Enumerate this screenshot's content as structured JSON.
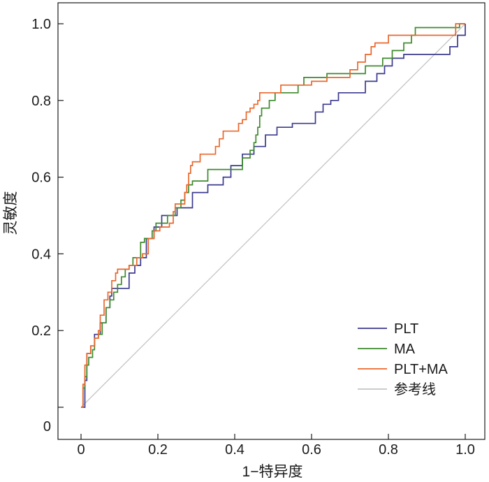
{
  "chart_data": {
    "type": "line",
    "title": "",
    "xlabel": "1−特异度",
    "ylabel": "灵敏度",
    "xlim": [
      0,
      1.0
    ],
    "ylim": [
      0,
      1.0
    ],
    "x_ticks": [
      "0",
      "0.2",
      "0.4",
      "0.6",
      "0.8",
      "1.0"
    ],
    "y_ticks": [
      "0",
      "0.2",
      "0.4",
      "0.6",
      "0.8",
      "1.0"
    ],
    "grid": false,
    "legend_position": "bottom-right",
    "series": [
      {
        "name": "PLT",
        "color": "#3b3a8e",
        "points": [
          [
            0,
            0
          ],
          [
            0.01,
            0.07
          ],
          [
            0.015,
            0.14
          ],
          [
            0.025,
            0.16
          ],
          [
            0.035,
            0.19
          ],
          [
            0.05,
            0.22
          ],
          [
            0.065,
            0.26
          ],
          [
            0.075,
            0.29
          ],
          [
            0.08,
            0.31
          ],
          [
            0.095,
            0.31
          ],
          [
            0.11,
            0.31
          ],
          [
            0.125,
            0.35
          ],
          [
            0.14,
            0.37
          ],
          [
            0.155,
            0.39
          ],
          [
            0.17,
            0.44
          ],
          [
            0.19,
            0.47
          ],
          [
            0.21,
            0.5
          ],
          [
            0.23,
            0.5
          ],
          [
            0.25,
            0.52
          ],
          [
            0.29,
            0.56
          ],
          [
            0.33,
            0.58
          ],
          [
            0.37,
            0.6
          ],
          [
            0.39,
            0.63
          ],
          [
            0.42,
            0.66
          ],
          [
            0.45,
            0.68
          ],
          [
            0.48,
            0.71
          ],
          [
            0.51,
            0.73
          ],
          [
            0.55,
            0.74
          ],
          [
            0.58,
            0.74
          ],
          [
            0.61,
            0.77
          ],
          [
            0.63,
            0.79
          ],
          [
            0.65,
            0.8
          ],
          [
            0.67,
            0.82
          ],
          [
            0.72,
            0.82
          ],
          [
            0.74,
            0.85
          ],
          [
            0.77,
            0.87
          ],
          [
            0.79,
            0.89
          ],
          [
            0.81,
            0.91
          ],
          [
            0.84,
            0.92
          ],
          [
            0.86,
            0.92
          ],
          [
            0.88,
            0.92
          ],
          [
            0.91,
            0.92
          ],
          [
            0.93,
            0.92
          ],
          [
            0.96,
            0.94
          ],
          [
            0.98,
            0.97
          ],
          [
            1.0,
            1.0
          ]
        ]
      },
      {
        "name": "MA",
        "color": "#3d8a2c",
        "points": [
          [
            0,
            0
          ],
          [
            0.005,
            0.05
          ],
          [
            0.01,
            0.08
          ],
          [
            0.015,
            0.11
          ],
          [
            0.02,
            0.13
          ],
          [
            0.03,
            0.15
          ],
          [
            0.035,
            0.18
          ],
          [
            0.045,
            0.19
          ],
          [
            0.055,
            0.22
          ],
          [
            0.065,
            0.26
          ],
          [
            0.075,
            0.28
          ],
          [
            0.085,
            0.3
          ],
          [
            0.095,
            0.32
          ],
          [
            0.105,
            0.34
          ],
          [
            0.115,
            0.36
          ],
          [
            0.125,
            0.37
          ],
          [
            0.135,
            0.39
          ],
          [
            0.145,
            0.39
          ],
          [
            0.155,
            0.43
          ],
          [
            0.165,
            0.44
          ],
          [
            0.185,
            0.46
          ],
          [
            0.195,
            0.48
          ],
          [
            0.21,
            0.48
          ],
          [
            0.225,
            0.5
          ],
          [
            0.235,
            0.5
          ],
          [
            0.245,
            0.52
          ],
          [
            0.26,
            0.54
          ],
          [
            0.27,
            0.56
          ],
          [
            0.28,
            0.58
          ],
          [
            0.29,
            0.59
          ],
          [
            0.31,
            0.59
          ],
          [
            0.33,
            0.62
          ],
          [
            0.365,
            0.62
          ],
          [
            0.385,
            0.62
          ],
          [
            0.41,
            0.62
          ],
          [
            0.42,
            0.65
          ],
          [
            0.44,
            0.67
          ],
          [
            0.45,
            0.69
          ],
          [
            0.455,
            0.71
          ],
          [
            0.46,
            0.73
          ],
          [
            0.465,
            0.76
          ],
          [
            0.47,
            0.78
          ],
          [
            0.49,
            0.8
          ],
          [
            0.505,
            0.82
          ],
          [
            0.54,
            0.82
          ],
          [
            0.565,
            0.84
          ],
          [
            0.58,
            0.86
          ],
          [
            0.61,
            0.86
          ],
          [
            0.64,
            0.87
          ],
          [
            0.665,
            0.87
          ],
          [
            0.72,
            0.87
          ],
          [
            0.74,
            0.89
          ],
          [
            0.76,
            0.89
          ],
          [
            0.785,
            0.91
          ],
          [
            0.81,
            0.93
          ],
          [
            0.825,
            0.93
          ],
          [
            0.84,
            0.95
          ],
          [
            0.86,
            0.97
          ],
          [
            0.87,
            0.99
          ],
          [
            0.885,
            0.99
          ],
          [
            0.93,
            0.99
          ],
          [
            0.95,
            0.99
          ],
          [
            0.97,
            0.99
          ],
          [
            0.985,
            1.0
          ],
          [
            1.0,
            1.0
          ]
        ]
      },
      {
        "name": "PLT+MA",
        "color": "#e8672c",
        "points": [
          [
            0,
            0
          ],
          [
            0.005,
            0.06
          ],
          [
            0.01,
            0.11
          ],
          [
            0.015,
            0.14
          ],
          [
            0.025,
            0.16
          ],
          [
            0.035,
            0.18
          ],
          [
            0.045,
            0.2
          ],
          [
            0.05,
            0.24
          ],
          [
            0.06,
            0.28
          ],
          [
            0.07,
            0.3
          ],
          [
            0.08,
            0.33
          ],
          [
            0.09,
            0.35
          ],
          [
            0.095,
            0.36
          ],
          [
            0.11,
            0.36
          ],
          [
            0.125,
            0.37
          ],
          [
            0.135,
            0.37
          ],
          [
            0.145,
            0.39
          ],
          [
            0.16,
            0.4
          ],
          [
            0.175,
            0.44
          ],
          [
            0.19,
            0.46
          ],
          [
            0.205,
            0.47
          ],
          [
            0.22,
            0.47
          ],
          [
            0.23,
            0.48
          ],
          [
            0.24,
            0.51
          ],
          [
            0.245,
            0.53
          ],
          [
            0.26,
            0.53
          ],
          [
            0.27,
            0.56
          ],
          [
            0.275,
            0.58
          ],
          [
            0.28,
            0.61
          ],
          [
            0.285,
            0.63
          ],
          [
            0.29,
            0.64
          ],
          [
            0.31,
            0.66
          ],
          [
            0.32,
            0.66
          ],
          [
            0.34,
            0.66
          ],
          [
            0.35,
            0.68
          ],
          [
            0.36,
            0.7
          ],
          [
            0.37,
            0.72
          ],
          [
            0.38,
            0.72
          ],
          [
            0.4,
            0.72
          ],
          [
            0.41,
            0.74
          ],
          [
            0.42,
            0.75
          ],
          [
            0.43,
            0.77
          ],
          [
            0.44,
            0.78
          ],
          [
            0.45,
            0.79
          ],
          [
            0.46,
            0.8
          ],
          [
            0.465,
            0.82
          ],
          [
            0.49,
            0.82
          ],
          [
            0.505,
            0.82
          ],
          [
            0.52,
            0.84
          ],
          [
            0.57,
            0.84
          ],
          [
            0.6,
            0.85
          ],
          [
            0.64,
            0.86
          ],
          [
            0.68,
            0.86
          ],
          [
            0.7,
            0.88
          ],
          [
            0.72,
            0.9
          ],
          [
            0.73,
            0.9
          ],
          [
            0.74,
            0.92
          ],
          [
            0.755,
            0.94
          ],
          [
            0.765,
            0.95
          ],
          [
            0.79,
            0.95
          ],
          [
            0.8,
            0.97
          ],
          [
            0.82,
            0.97
          ],
          [
            0.85,
            0.97
          ],
          [
            0.87,
            0.97
          ],
          [
            0.89,
            0.97
          ],
          [
            0.91,
            0.97
          ],
          [
            0.94,
            0.97
          ],
          [
            0.96,
            0.97
          ],
          [
            0.975,
            1.0
          ],
          [
            1.0,
            1.0
          ]
        ]
      },
      {
        "name": "参考线",
        "color": "#c4c4c4",
        "points": [
          [
            0,
            0
          ],
          [
            1.0,
            1.0
          ]
        ]
      }
    ]
  }
}
